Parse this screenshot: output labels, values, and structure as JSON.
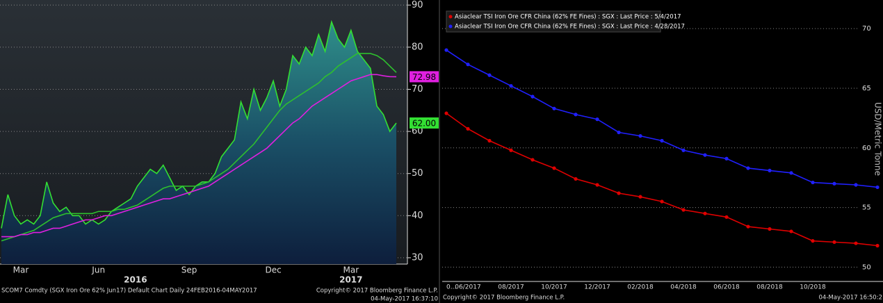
{
  "chart_data": [
    {
      "type": "area",
      "categories": [
        null,
        null,
        null,
        "Mar",
        null,
        null,
        null,
        null,
        null,
        null,
        null,
        null,
        null,
        null,
        null,
        "Jun",
        null,
        null,
        null,
        null,
        null,
        null,
        null,
        null,
        null,
        null,
        null,
        null,
        null,
        "Sep",
        null,
        null,
        null,
        null,
        null,
        null,
        null,
        null,
        null,
        null,
        null,
        null,
        "Dec",
        null,
        null,
        null,
        null,
        null,
        null,
        null,
        null,
        null,
        null,
        null,
        "Mar",
        null,
        null,
        null,
        null,
        null,
        null,
        null
      ],
      "year_labels": [
        "2016",
        "2017"
      ],
      "series": [
        {
          "color": "#33e033",
          "fill": true,
          "values": [
            37,
            45,
            40,
            38,
            39,
            38,
            40,
            48,
            43,
            41,
            42,
            40,
            40,
            38,
            39,
            38,
            39,
            41,
            42,
            43,
            44,
            47,
            49,
            51,
            50,
            52,
            49,
            46,
            47,
            45,
            47,
            48,
            48,
            50,
            54,
            56,
            58,
            67,
            63,
            70,
            65,
            68,
            72,
            66,
            70,
            78,
            76,
            80,
            78,
            83,
            79,
            86,
            82,
            80,
            84,
            79,
            77,
            75,
            66,
            64,
            60,
            62
          ],
          "value_labels": [
            null,
            null,
            null,
            null,
            null,
            null,
            null,
            null,
            null,
            null,
            null,
            null,
            null,
            null,
            null,
            null,
            null,
            null,
            null,
            null,
            null,
            null,
            null,
            null,
            null,
            null,
            null,
            null,
            null,
            null,
            null,
            null,
            null,
            null,
            null,
            null,
            null,
            null,
            null,
            null,
            null,
            null,
            null,
            null,
            null,
            null,
            null,
            null,
            null,
            null,
            null,
            null,
            null,
            null,
            null,
            null,
            null,
            null,
            null,
            null,
            null,
            "62.00"
          ]
        },
        {
          "color": "#2ec02e",
          "values": [
            34,
            34.5,
            35,
            35.5,
            36,
            36.5,
            37.5,
            38.5,
            39.5,
            40,
            40.5,
            40.5,
            40.5,
            40.5,
            40.5,
            41,
            41,
            41,
            41.5,
            41.5,
            42,
            42.5,
            43.5,
            44.5,
            45.5,
            46.5,
            47,
            47,
            47,
            47,
            47,
            47.5,
            48,
            49,
            50,
            51,
            52.5,
            54,
            55.5,
            57,
            59,
            61,
            63,
            65,
            66.5,
            67.5,
            68.5,
            69.5,
            70.5,
            71.5,
            73,
            74,
            75.5,
            76.5,
            77.5,
            78.5,
            78.5,
            78.5,
            78,
            77,
            75.5,
            74
          ]
        },
        {
          "color": "#e020e0",
          "values": [
            35,
            35,
            35,
            35.5,
            35.5,
            36,
            36,
            36.5,
            37,
            37,
            37.5,
            38,
            38.5,
            39,
            39,
            39.5,
            40,
            40,
            40.5,
            41,
            41.5,
            42,
            42.5,
            43,
            43.5,
            44,
            44,
            44.5,
            45,
            45.5,
            46,
            46.5,
            47,
            48,
            49,
            50,
            51,
            52,
            53,
            54,
            55,
            56,
            57.5,
            59,
            60.5,
            62,
            63,
            64.5,
            66,
            67,
            68,
            69,
            70,
            71,
            72,
            72.5,
            73,
            73.5,
            73.5,
            73.2,
            73,
            72.98
          ]
        }
      ],
      "end_label_series": [
        0,
        2
      ],
      "ylim": [
        28.5,
        91.2
      ],
      "yticks": [
        30,
        40,
        50,
        60,
        70,
        80,
        90
      ],
      "grid": true,
      "footer": [
        "SCOM7 Comdty (SGX Iron Ore 62% Jun17) Default Chart Daily 24FEB2016-04MAY2017",
        "Copyright© 2017 Bloomberg Finance L.P.",
        "04-May-2017 16:37:10"
      ]
    },
    {
      "type": "line",
      "categories": [
        "0...",
        "06/2017",
        null,
        "08/2017",
        null,
        "10/2017",
        null,
        "12/2017",
        null,
        "02/2018",
        null,
        "04/2018",
        null,
        "06/2018",
        null,
        "08/2018",
        null,
        "10/2018",
        null,
        null,
        null
      ],
      "series": [
        {
          "name": "Asiaclear TSI Iron Ore CFR China (62% FE Fines) : SGX : Last Price : 5/4/2017",
          "color": "#e00000",
          "values": [
            62.9,
            61.6,
            60.6,
            59.8,
            59.0,
            58.3,
            57.4,
            56.9,
            56.2,
            55.9,
            55.5,
            54.8,
            54.5,
            54.2,
            53.4,
            53.2,
            53.0,
            52.2,
            52.1,
            52.0,
            51.8
          ]
        },
        {
          "name": "Asiaclear TSI Iron Ore CFR China (62% FE Fines) : SGX : Last Price : 4/28/2017",
          "color": "#2020ff",
          "values": [
            68.2,
            67.0,
            66.1,
            65.2,
            64.3,
            63.3,
            62.8,
            62.4,
            61.3,
            61.0,
            60.6,
            59.8,
            59.4,
            59.1,
            58.3,
            58.1,
            57.9,
            57.1,
            57.0,
            56.9,
            56.7
          ]
        }
      ],
      "y_label": "USD/Metric Tonne",
      "ylim": [
        48.8,
        72.4
      ],
      "yticks": [
        50,
        55,
        60,
        65,
        70
      ],
      "grid": true,
      "legend": "top-left",
      "footer": [
        "Copyright© 2017 Bloomberg Finance L.P.",
        "04-May-2017 16:50:2"
      ]
    }
  ]
}
